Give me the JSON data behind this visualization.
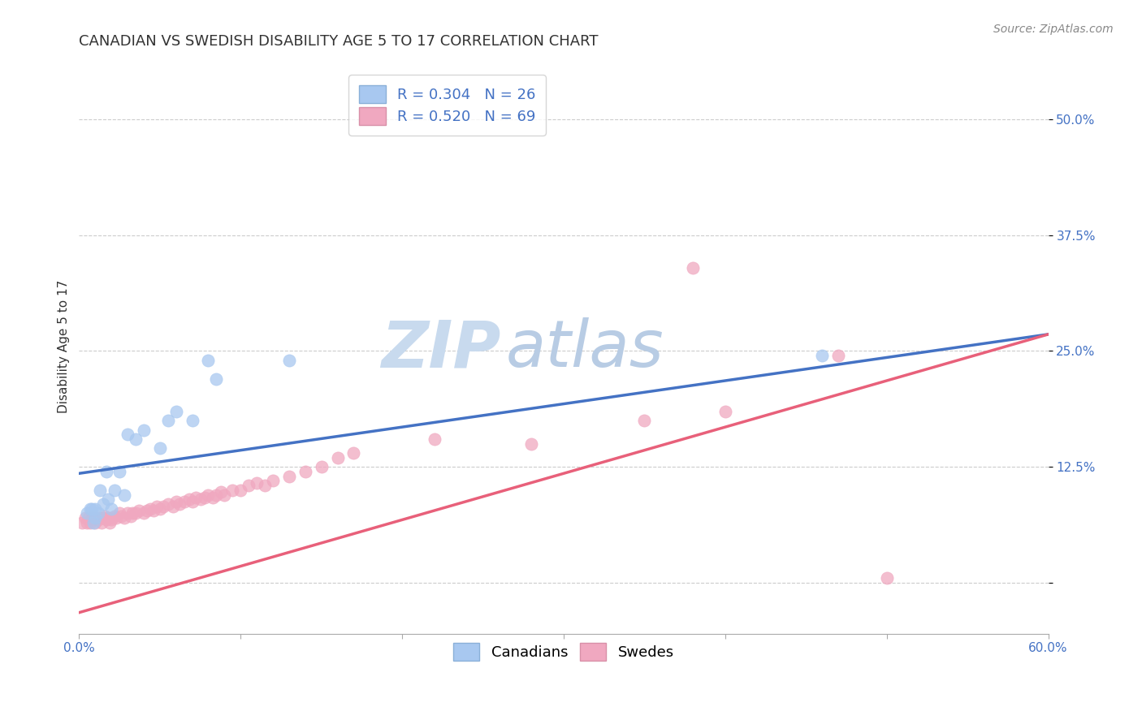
{
  "title": "CANADIAN VS SWEDISH DISABILITY AGE 5 TO 17 CORRELATION CHART",
  "source_text": "Source: ZipAtlas.com",
  "ylabel": "Disability Age 5 to 17",
  "xlim": [
    0.0,
    0.6
  ],
  "ylim": [
    -0.055,
    0.565
  ],
  "ytick_vals": [
    0.0,
    0.125,
    0.25,
    0.375,
    0.5
  ],
  "ytick_labels": [
    "",
    "12.5%",
    "25.0%",
    "37.5%",
    "50.0%"
  ],
  "grid_color": "#cccccc",
  "background_color": "#ffffff",
  "canadian_color": "#a8c8f0",
  "swedish_color": "#f0a8c0",
  "canadian_line_color": "#4472c4",
  "swedish_line_color": "#e8607a",
  "watermark_top": "ZIP",
  "watermark_bot": "atlas",
  "watermark_color": "#d8e8f8",
  "r_canadian": 0.304,
  "n_canadian": 26,
  "r_swedish": 0.52,
  "n_swedish": 69,
  "canadian_line": [
    0.118,
    0.268
  ],
  "swedish_line": [
    -0.032,
    0.268
  ],
  "canadian_x": [
    0.005,
    0.007,
    0.008,
    0.009,
    0.01,
    0.01,
    0.012,
    0.013,
    0.015,
    0.017,
    0.018,
    0.02,
    0.022,
    0.025,
    0.028,
    0.03,
    0.035,
    0.04,
    0.05,
    0.055,
    0.06,
    0.07,
    0.08,
    0.085,
    0.13,
    0.46
  ],
  "canadian_y": [
    0.075,
    0.08,
    0.08,
    0.065,
    0.07,
    0.08,
    0.075,
    0.1,
    0.085,
    0.12,
    0.09,
    0.08,
    0.1,
    0.12,
    0.095,
    0.16,
    0.155,
    0.165,
    0.145,
    0.175,
    0.185,
    0.175,
    0.24,
    0.22,
    0.24,
    0.245
  ],
  "swedish_x": [
    0.002,
    0.004,
    0.005,
    0.006,
    0.007,
    0.008,
    0.009,
    0.01,
    0.01,
    0.012,
    0.013,
    0.014,
    0.015,
    0.016,
    0.017,
    0.018,
    0.019,
    0.02,
    0.02,
    0.022,
    0.023,
    0.025,
    0.026,
    0.028,
    0.03,
    0.032,
    0.033,
    0.035,
    0.037,
    0.04,
    0.042,
    0.044,
    0.046,
    0.048,
    0.05,
    0.052,
    0.055,
    0.058,
    0.06,
    0.062,
    0.065,
    0.068,
    0.07,
    0.072,
    0.075,
    0.078,
    0.08,
    0.083,
    0.085,
    0.088,
    0.09,
    0.095,
    0.1,
    0.105,
    0.11,
    0.115,
    0.12,
    0.13,
    0.14,
    0.15,
    0.16,
    0.17,
    0.22,
    0.28,
    0.35,
    0.38,
    0.4,
    0.47,
    0.5
  ],
  "swedish_y": [
    0.065,
    0.07,
    0.065,
    0.07,
    0.065,
    0.07,
    0.068,
    0.065,
    0.07,
    0.068,
    0.07,
    0.065,
    0.07,
    0.072,
    0.068,
    0.07,
    0.065,
    0.07,
    0.068,
    0.072,
    0.07,
    0.075,
    0.072,
    0.07,
    0.075,
    0.072,
    0.075,
    0.075,
    0.078,
    0.075,
    0.078,
    0.08,
    0.078,
    0.082,
    0.08,
    0.082,
    0.085,
    0.082,
    0.088,
    0.085,
    0.088,
    0.09,
    0.088,
    0.092,
    0.09,
    0.092,
    0.095,
    0.092,
    0.095,
    0.098,
    0.095,
    0.1,
    0.1,
    0.105,
    0.108,
    0.105,
    0.11,
    0.115,
    0.12,
    0.125,
    0.135,
    0.14,
    0.155,
    0.15,
    0.175,
    0.34,
    0.185,
    0.245,
    0.005
  ],
  "legend_box_color": "#ffffff",
  "legend_border_color": "#cccccc",
  "title_fontsize": 13,
  "axis_label_fontsize": 11,
  "tick_fontsize": 11,
  "legend_fontsize": 13
}
